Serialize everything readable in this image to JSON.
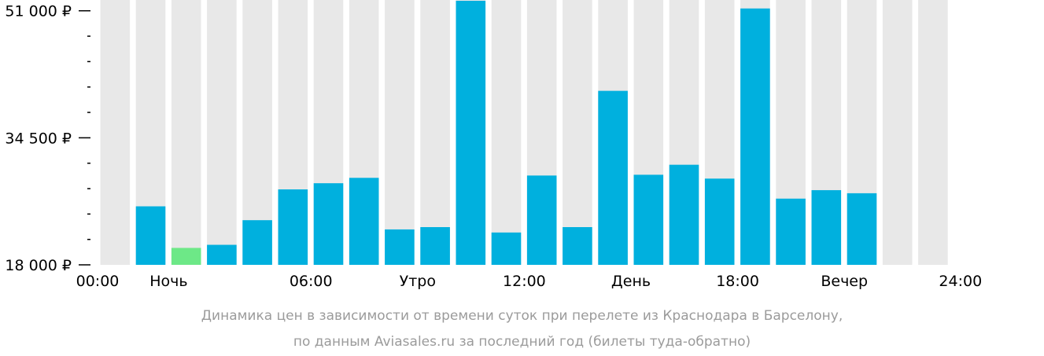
{
  "chart_data": {
    "type": "bar",
    "currency_suffix": " ₽",
    "categories": [
      "00",
      "01",
      "02",
      "03",
      "04",
      "05",
      "06",
      "07",
      "08",
      "09",
      "10",
      "11",
      "12",
      "13",
      "14",
      "15",
      "16",
      "17",
      "18",
      "19",
      "20",
      "21",
      "22",
      "23"
    ],
    "values": [
      null,
      25600,
      20200,
      20600,
      23800,
      27800,
      28600,
      29300,
      22600,
      22900,
      52300,
      22200,
      29600,
      22900,
      40600,
      29700,
      31000,
      29200,
      51300,
      26600,
      27700,
      27300,
      null,
      null
    ],
    "highlight_index": 2,
    "ylim": [
      18000,
      52400
    ],
    "yticks_labeled": [
      {
        "value": 18000,
        "label": "18 000 ₽"
      },
      {
        "value": 34500,
        "label": "34 500 ₽"
      },
      {
        "value": 51000,
        "label": "51 000 ₽"
      }
    ],
    "yticks_minor_step": 3300,
    "xtick_labels": [
      {
        "pos": 0,
        "label": "00:00"
      },
      {
        "pos": 2,
        "label": "Ночь"
      },
      {
        "pos": 6,
        "label": "06:00"
      },
      {
        "pos": 9,
        "label": "Утро"
      },
      {
        "pos": 12,
        "label": "12:00"
      },
      {
        "pos": 15,
        "label": "День"
      },
      {
        "pos": 18,
        "label": "18:00"
      },
      {
        "pos": 21,
        "label": "Вечер"
      },
      {
        "pos": 24,
        "label": "24:00"
      }
    ],
    "colors": {
      "bar": "#00b0de",
      "highlight": "#6de887",
      "background_bar": "#e8e8e8",
      "axis": "#000000",
      "caption": "#9b9b9b"
    },
    "caption": [
      "Динамика цен в зависимости от времени суток при перелете из Краснодара в Барселону,",
      "по данным Aviasales.ru за последний год (билеты туда-обратно)"
    ],
    "grid": false,
    "legend": "none"
  }
}
